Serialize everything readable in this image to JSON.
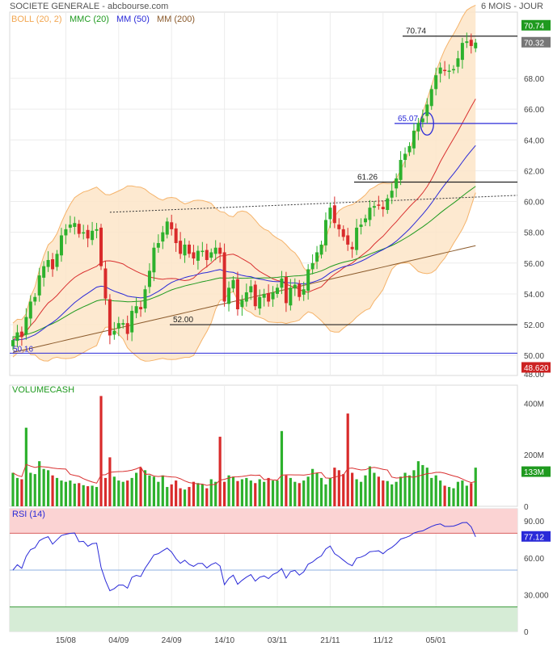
{
  "header": {
    "title": "SOCIETE GENERALE - abcbourse.com",
    "period": "6 MOIS - JOUR"
  },
  "legend": [
    {
      "label": "BOLL (20, 2)",
      "color": "#f2a650"
    },
    {
      "label": "MMC (20)",
      "color": "#1f9a1f"
    },
    {
      "label": "MM (50)",
      "color": "#2a2ad8"
    },
    {
      "label": "MM (200)",
      "color": "#8b5a2b"
    }
  ],
  "colors": {
    "up": "#2db12d",
    "down": "#d92b2b",
    "band_fill": "#fde5c8",
    "band_line": "#f5b36a",
    "rsi_overbought_fill": "#fbd3d3",
    "rsi_oversold_fill": "#d6ecd6"
  },
  "chart_data": [
    {
      "type": "candlestick",
      "ylim": [
        48.7,
        72.3
      ],
      "y_ticks": [
        "68.00",
        "66.00",
        "64.00",
        "62.00",
        "60.00",
        "58.00",
        "56.00",
        "54.00",
        "52.00",
        "50.00",
        "48.00"
      ],
      "y_tick_values": [
        68,
        66,
        64,
        62,
        60,
        58,
        56,
        54,
        52,
        50,
        48
      ],
      "x_ticks": [
        "15/08",
        "04/09",
        "24/09",
        "14/10",
        "03/11",
        "21/11",
        "11/12",
        "05/01"
      ],
      "x_tick_index": [
        12,
        24,
        36,
        48,
        60,
        72,
        84,
        96
      ],
      "last_price": "70.32",
      "last_price_value": 70.32,
      "upper_price_tag": "70.74",
      "low_price_tag": "48.620",
      "closes": [
        51.0,
        51.5,
        51.2,
        52.5,
        53.5,
        53.8,
        55.2,
        55.8,
        56.2,
        55.6,
        56.6,
        57.8,
        58.2,
        58.5,
        58.6,
        57.9,
        58.0,
        57.6,
        58.1,
        58.2,
        55.8,
        53.7,
        51.3,
        51.6,
        52.1,
        52.1,
        51.4,
        52.9,
        53.2,
        53.0,
        54.3,
        55.5,
        57.0,
        57.3,
        58.0,
        58.7,
        58.2,
        57.3,
        56.6,
        57.2,
        56.6,
        56.3,
        56.8,
        56.8,
        56.2,
        56.7,
        57.0,
        56.6,
        53.5,
        54.4,
        54.9,
        53.0,
        53.6,
        54.1,
        54.5,
        53.2,
        53.8,
        54.0,
        53.5,
        54.1,
        54.4,
        55.0,
        53.4,
        54.4,
        54.6,
        53.8,
        54.3,
        55.6,
        56.0,
        56.7,
        57.2,
        58.8,
        59.6,
        58.6,
        58.2,
        57.7,
        57.2,
        56.9,
        58.3,
        58.5,
        58.9,
        59.6,
        59.7,
        59.8,
        59.5,
        60.2,
        60.7,
        61.5,
        62.7,
        63.1,
        63.6,
        64.6,
        65.1,
        65.4,
        66.3,
        67.3,
        68.2,
        68.7,
        68.5,
        68.5,
        68.6,
        69.3,
        70.3,
        70.4,
        70.1,
        70.32
      ],
      "volumes": [
        130,
        110,
        105,
        305,
        130,
        125,
        175,
        145,
        140,
        120,
        110,
        100,
        95,
        100,
        88,
        90,
        82,
        78,
        80,
        75,
        428,
        110,
        190,
        115,
        100,
        95,
        100,
        110,
        130,
        150,
        140,
        120,
        115,
        95,
        120,
        75,
        85,
        100,
        70,
        65,
        75,
        95,
        90,
        85,
        70,
        105,
        95,
        270,
        95,
        120,
        115,
        98,
        105,
        110,
        100,
        90,
        105,
        95,
        110,
        100,
        100,
        292,
        120,
        110,
        95,
        90,
        100,
        115,
        145,
        130,
        110,
        85,
        110,
        150,
        140,
        125,
        360,
        130,
        105,
        95,
        120,
        155,
        130,
        115,
        100,
        98,
        85,
        95,
        115,
        130,
        120,
        140,
        175,
        160,
        150,
        110,
        120,
        100,
        80,
        75,
        70,
        95,
        100,
        80,
        90,
        150
      ],
      "vol_y_ticks": [
        "400M",
        "200M",
        "0"
      ],
      "vol_label": "133M",
      "rsi_y_ticks": [
        "90.00",
        "60.00",
        "30.000",
        "0"
      ],
      "rsi_label": "77.12",
      "rsi_value": 77.12,
      "ma50_start_label": "50.16",
      "annotations": [
        {
          "text": "70.74",
          "y": 70.74
        },
        {
          "text": "65.07",
          "y": 65.07
        },
        {
          "text": "61.26",
          "y": 61.26
        },
        {
          "text": "52.00",
          "y": 52.0
        }
      ],
      "panels": [
        "BOLL (20, 2)",
        "VOLUMECASH",
        "RSI (14)"
      ]
    }
  ]
}
